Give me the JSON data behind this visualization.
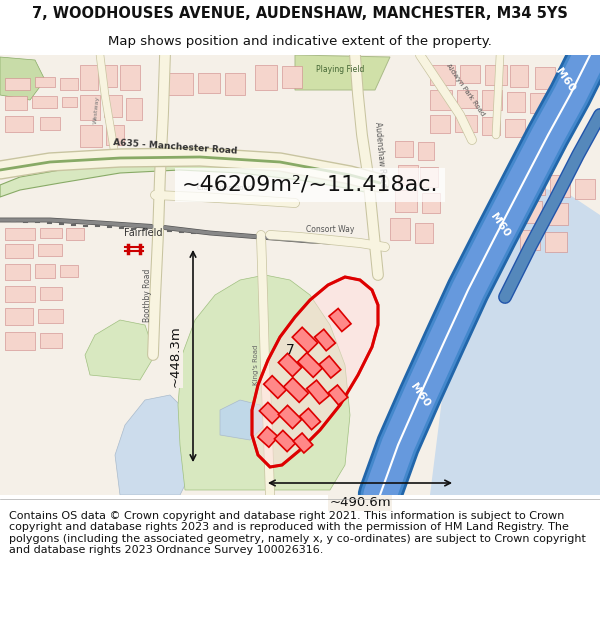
{
  "title_line1": "7, WOODHOUSES AVENUE, AUDENSHAW, MANCHESTER, M34 5YS",
  "title_line2": "Map shows position and indicative extent of the property.",
  "title_fontsize": 10.5,
  "subtitle_fontsize": 9.5,
  "area_text": "~46209m²/~11.418ac.",
  "area_fontsize": 16,
  "dim_h_text": "~490.6m",
  "dim_v_text": "~448.3m",
  "footer_text": "Contains OS data © Crown copyright and database right 2021. This information is subject to Crown copyright and database rights 2023 and is reproduced with the permission of HM Land Registry. The polygons (including the associated geometry, namely x, y co-ordinates) are subject to Crown copyright and database rights 2023 Ordnance Survey 100026316.",
  "footer_fontsize": 8.0,
  "bg_cream": "#f5f0e8",
  "bg_light": "#ede8dc",
  "green_light": "#d8e8c0",
  "green_med": "#c8dca8",
  "green_dark": "#b8cc98",
  "water_blue": "#b8d0e8",
  "water_light": "#ccdcec",
  "m60_blue": "#4488cc",
  "m60_edge": "#2266aa",
  "road_cream": "#faf5e0",
  "road_edge": "#ccccaa",
  "road_green_fill": "#c8d8a0",
  "road_green_edge": "#88aa66",
  "building_fill": "#f5d5cc",
  "building_edge": "#cc9988",
  "building_fill2": "#eeddd8",
  "red_highlight": "#dd0000",
  "red_fill": "#ff000033",
  "white": "#ffffff",
  "black": "#111111",
  "gray_line": "#888888",
  "title_bg": "#ffffff",
  "footer_bg": "#ffffff"
}
